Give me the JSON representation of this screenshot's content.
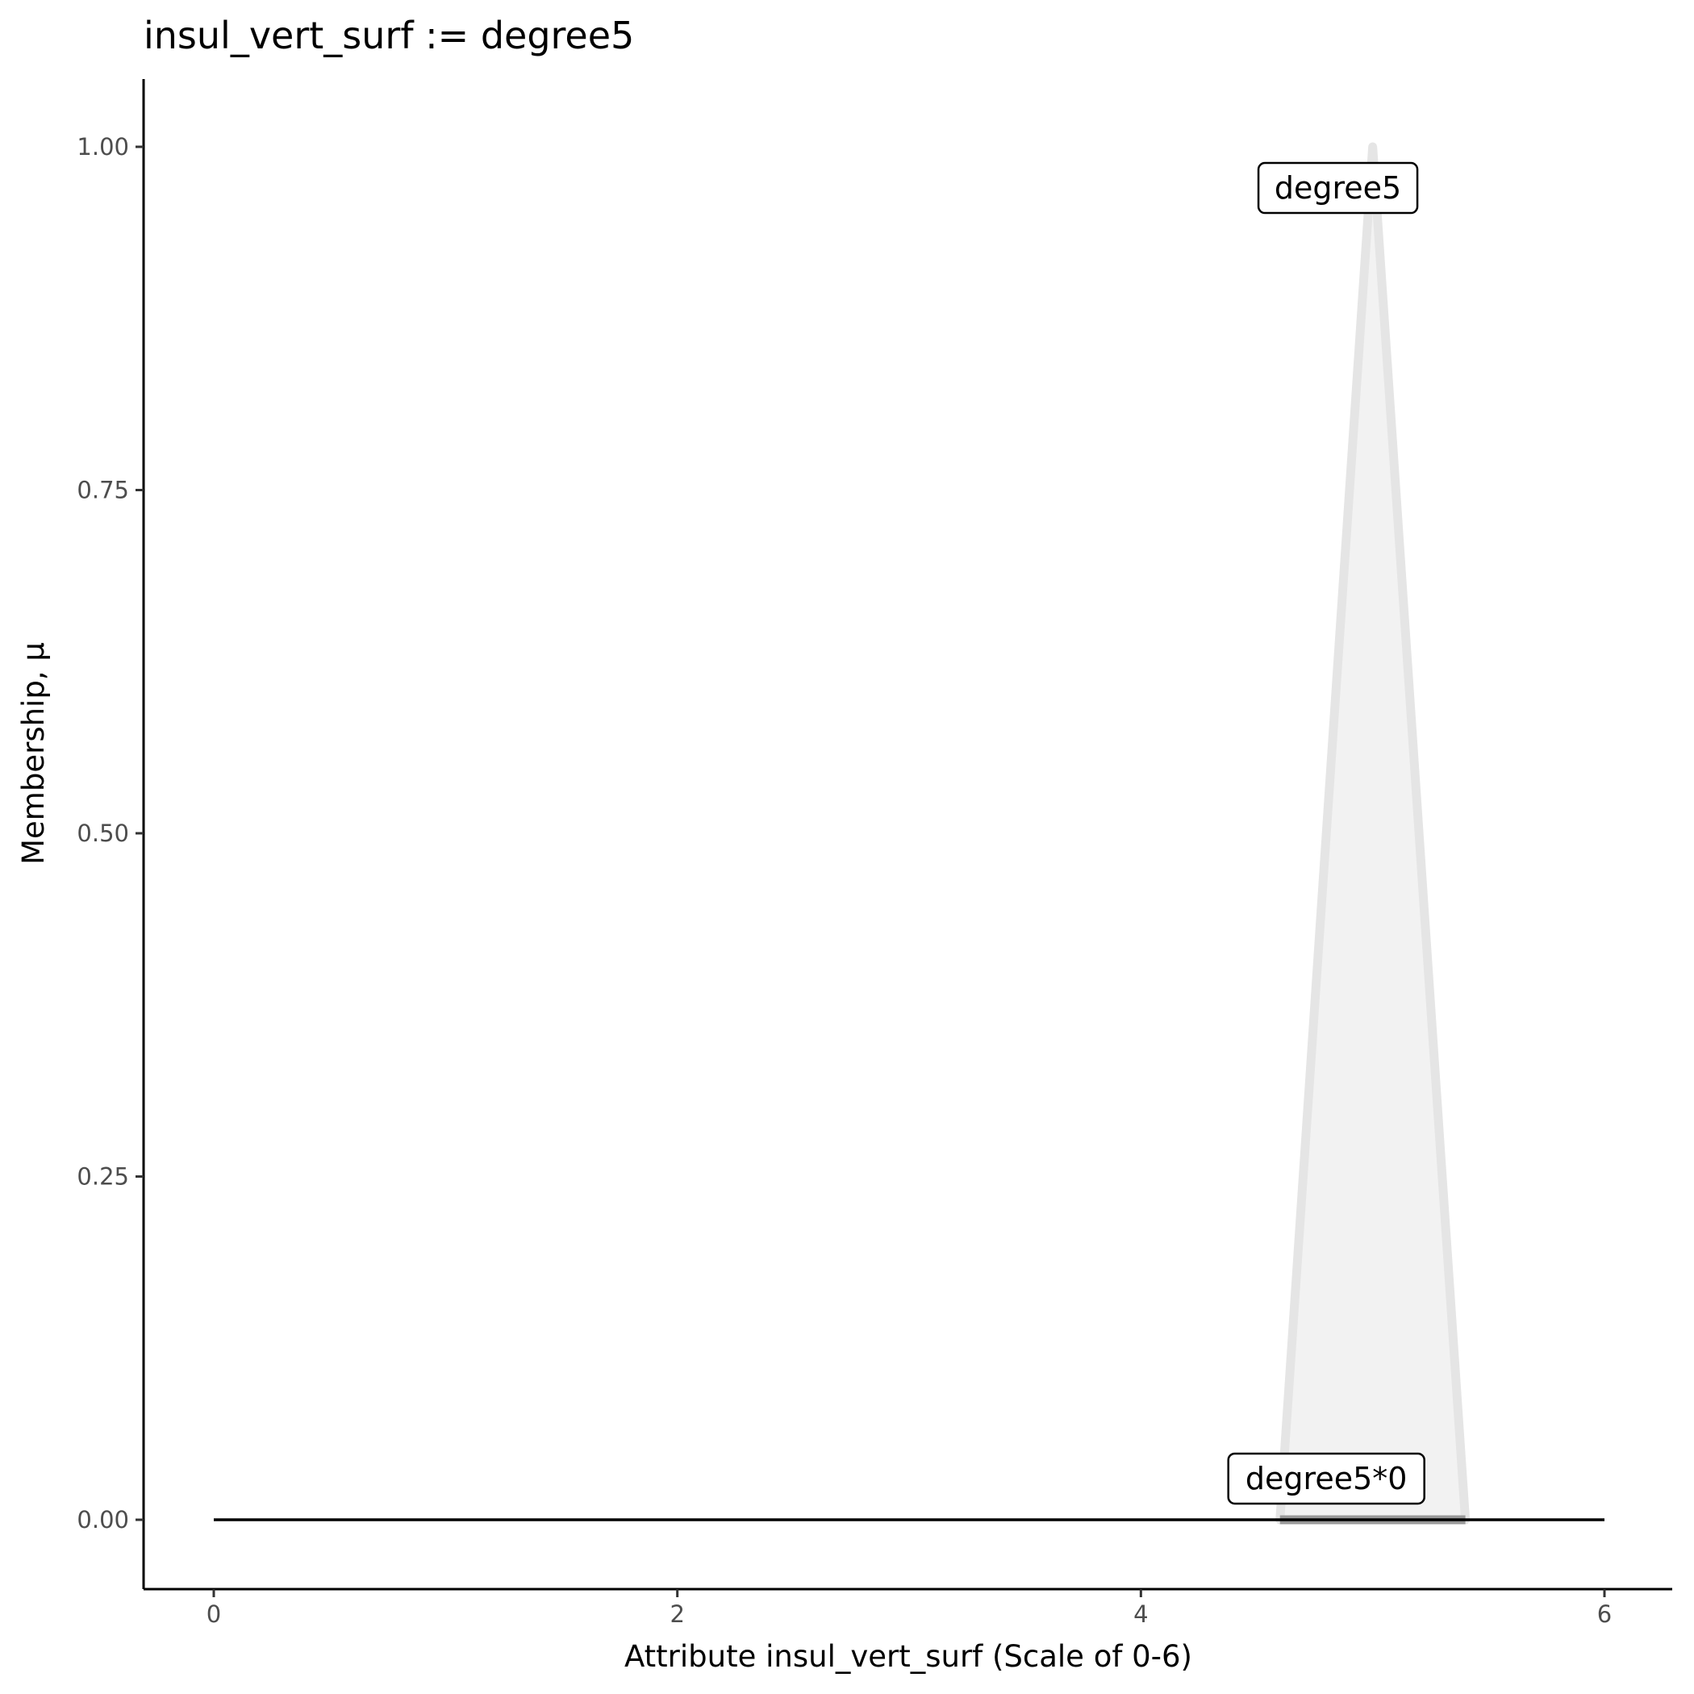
{
  "chart_data": {
    "type": "area",
    "title": "insul_vert_surf := degree5",
    "xlabel": "Attribute insul_vert_surf (Scale of 0-6)",
    "ylabel": "Membership, μ",
    "xlim": [
      -0.3,
      6.3
    ],
    "ylim": [
      -0.05,
      1.05
    ],
    "x_ticks": [
      0,
      2,
      4,
      6
    ],
    "x_tick_labels": [
      "0",
      "2",
      "4",
      "6"
    ],
    "y_ticks": [
      0,
      0.25,
      0.5,
      0.75,
      1.0
    ],
    "y_tick_labels": [
      "0.00",
      "0.25",
      "0.50",
      "0.75",
      "1.00"
    ],
    "grid": false,
    "series": [
      {
        "name": "degree5",
        "x": [
          4.6,
          5.0,
          5.4
        ],
        "y": [
          0,
          1,
          0
        ],
        "fill": "#f2f2f2",
        "stroke": "#e5e5e5"
      },
      {
        "name": "degree5*0",
        "x": [
          4.6,
          5.4
        ],
        "y": [
          0,
          0
        ],
        "stroke": "#999999"
      },
      {
        "x": [
          0,
          6
        ],
        "y": [
          0,
          0
        ],
        "stroke": "#000000"
      }
    ],
    "annotations": [
      {
        "text": "degree5",
        "x": 4.85,
        "y": 0.97
      },
      {
        "text": "degree5*0",
        "x": 4.8,
        "y": 0.03
      }
    ]
  }
}
